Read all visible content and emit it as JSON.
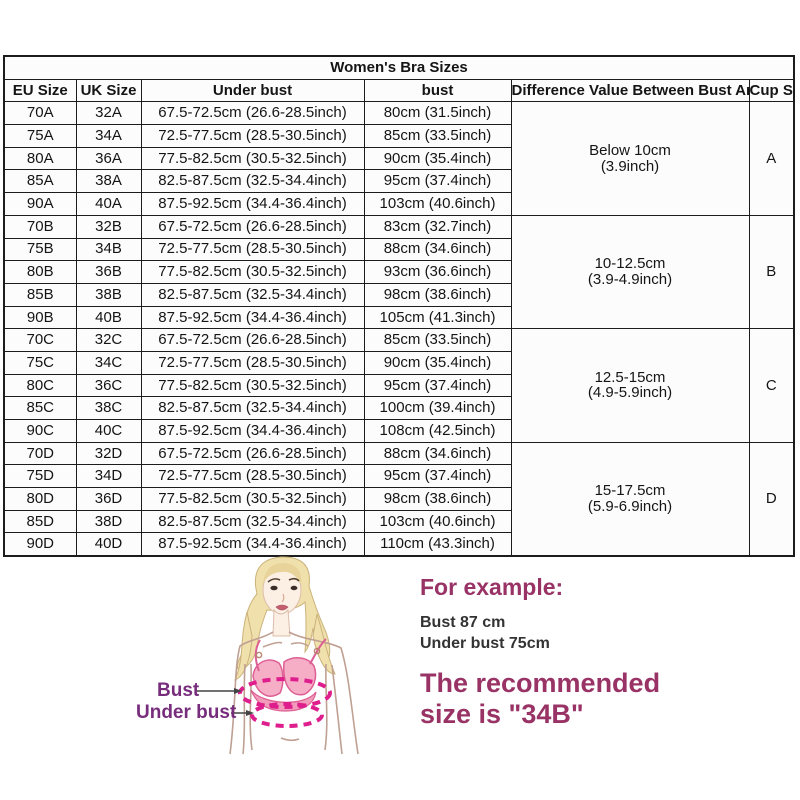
{
  "table": {
    "title": "Women's Bra Sizes",
    "columns": [
      "EU Size",
      "UK Size",
      "Under bust",
      "bust",
      "Difference Value Between Bust And Under Bust",
      "Cup Size"
    ],
    "groups": [
      {
        "cup": "A",
        "difference": [
          "Below 10cm",
          "(3.9inch)"
        ],
        "rows": [
          [
            "70A",
            "32A",
            "67.5-72.5cm (26.6-28.5inch)",
            "80cm (31.5inch)"
          ],
          [
            "75A",
            "34A",
            "72.5-77.5cm (28.5-30.5inch)",
            "85cm (33.5inch)"
          ],
          [
            "80A",
            "36A",
            "77.5-82.5cm (30.5-32.5inch)",
            "90cm (35.4inch)"
          ],
          [
            "85A",
            "38A",
            "82.5-87.5cm (32.5-34.4inch)",
            "95cm (37.4inch)"
          ],
          [
            "90A",
            "40A",
            "87.5-92.5cm (34.4-36.4inch)",
            "103cm (40.6inch)"
          ]
        ]
      },
      {
        "cup": "B",
        "difference": [
          "10-12.5cm",
          "(3.9-4.9inch)"
        ],
        "rows": [
          [
            "70B",
            "32B",
            "67.5-72.5cm (26.6-28.5inch)",
            "83cm (32.7inch)"
          ],
          [
            "75B",
            "34B",
            "72.5-77.5cm (28.5-30.5inch)",
            "88cm (34.6inch)"
          ],
          [
            "80B",
            "36B",
            "77.5-82.5cm (30.5-32.5inch)",
            "93cm (36.6inch)"
          ],
          [
            "85B",
            "38B",
            "82.5-87.5cm (32.5-34.4inch)",
            "98cm (38.6inch)"
          ],
          [
            "90B",
            "40B",
            "87.5-92.5cm (34.4-36.4inch)",
            "105cm (41.3inch)"
          ]
        ]
      },
      {
        "cup": "C",
        "difference": [
          "12.5-15cm",
          "(4.9-5.9inch)"
        ],
        "rows": [
          [
            "70C",
            "32C",
            "67.5-72.5cm (26.6-28.5inch)",
            "85cm (33.5inch)"
          ],
          [
            "75C",
            "34C",
            "72.5-77.5cm (28.5-30.5inch)",
            "90cm (35.4inch)"
          ],
          [
            "80C",
            "36C",
            "77.5-82.5cm (30.5-32.5inch)",
            "95cm (37.4inch)"
          ],
          [
            "85C",
            "38C",
            "82.5-87.5cm (32.5-34.4inch)",
            "100cm (39.4inch)"
          ],
          [
            "90C",
            "40C",
            "87.5-92.5cm (34.4-36.4inch)",
            "108cm (42.5inch)"
          ]
        ]
      },
      {
        "cup": "D",
        "difference": [
          "15-17.5cm",
          "(5.9-6.9inch)"
        ],
        "rows": [
          [
            "70D",
            "32D",
            "67.5-72.5cm (26.6-28.5inch)",
            "88cm (34.6inch)"
          ],
          [
            "75D",
            "34D",
            "72.5-77.5cm (28.5-30.5inch)",
            "95cm (37.4inch)"
          ],
          [
            "80D",
            "36D",
            "77.5-82.5cm (30.5-32.5inch)",
            "98cm (38.6inch)"
          ],
          [
            "85D",
            "38D",
            "82.5-87.5cm (32.5-34.4inch)",
            "103cm (40.6inch)"
          ],
          [
            "90D",
            "40D",
            "87.5-92.5cm (34.4-36.4inch)",
            "110cm (43.3inch)"
          ]
        ]
      }
    ]
  },
  "example": {
    "heading": "For example:",
    "bust_line": "Bust 87 cm",
    "under_bust_line": "Under bust 75cm",
    "result_line1": "The recommended",
    "result_line2": "size is \"34B\""
  },
  "diagram": {
    "bust_label": "Bust",
    "under_bust_label": "Under bust"
  },
  "colors": {
    "title_bg": "#fafac8",
    "header_bg": "#dedede",
    "table_border": "#1c1c1c",
    "accent_text": "#993366",
    "diagram_label": "#772d7c",
    "bra_pink": "#f6aec7",
    "dashed_ellipse": "#de1e8c"
  }
}
